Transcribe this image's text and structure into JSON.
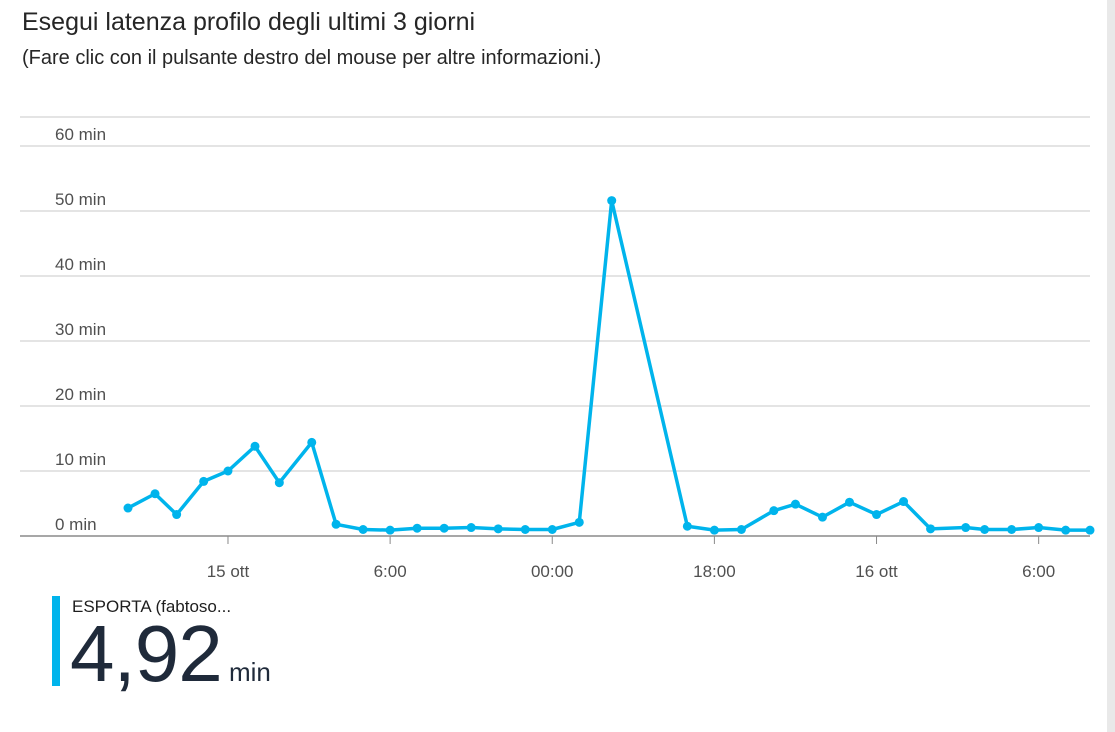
{
  "title": "Esegui latenza profilo degli ultimi 3 giorni",
  "subtitle": "(Fare clic con il pulsante destro del mouse per altre informazioni.)",
  "legend": {
    "name": "ESPORTA (fabtoso...",
    "value": "4,92",
    "unit": "min"
  },
  "colors": {
    "series": "#00b4ec",
    "grid": "#c8c8c8",
    "axis": "#505050"
  },
  "chart_data": {
    "type": "line",
    "title": "Esegui latenza profilo degli ultimi 3 giorni",
    "xlabel": "",
    "ylabel": "",
    "ylim": [
      0,
      60
    ],
    "grid": true,
    "y_ticks": [
      {
        "value": 0,
        "label": "0 min"
      },
      {
        "value": 10,
        "label": "10 min"
      },
      {
        "value": 20,
        "label": "20 min"
      },
      {
        "value": 30,
        "label": "30 min"
      },
      {
        "value": 40,
        "label": "40 min"
      },
      {
        "value": 50,
        "label": "50 min"
      },
      {
        "value": 60,
        "label": "60 min"
      }
    ],
    "x_ticks": [
      {
        "hour": 24,
        "label": "15 ott"
      },
      {
        "hour": 30,
        "label": "6:00"
      },
      {
        "hour": 36,
        "label": "00:00"
      },
      {
        "hour": 42,
        "label": "18:00"
      },
      {
        "hour": 48,
        "label": "16 ott"
      },
      {
        "hour": 54,
        "label": "6:00"
      }
    ],
    "xlim": [
      20.3,
      55.9
    ],
    "series": [
      {
        "name": "ESPORTA (fabtoso...",
        "x": [
          20.3,
          21.3,
          22.1,
          23.1,
          24.0,
          25.0,
          25.9,
          27.1,
          28.0,
          29.0,
          30.0,
          31.0,
          32.0,
          33.0,
          34.0,
          35.0,
          36.0,
          37.0,
          38.2,
          41.0,
          42.0,
          43.0,
          44.2,
          45.0,
          46.0,
          47.0,
          48.0,
          49.0,
          50.0,
          51.3,
          52.0,
          53.0,
          54.0,
          55.0,
          55.9
        ],
        "y": [
          4.3,
          6.5,
          3.3,
          8.4,
          10.0,
          13.8,
          8.2,
          14.4,
          1.8,
          1.0,
          0.9,
          1.2,
          1.2,
          1.3,
          1.1,
          1.0,
          1.0,
          2.1,
          51.6,
          1.5,
          0.9,
          1.0,
          3.9,
          4.9,
          2.9,
          5.2,
          3.3,
          5.3,
          1.1,
          1.3,
          1.0,
          1.0,
          1.3,
          0.9,
          0.9
        ]
      }
    ]
  }
}
